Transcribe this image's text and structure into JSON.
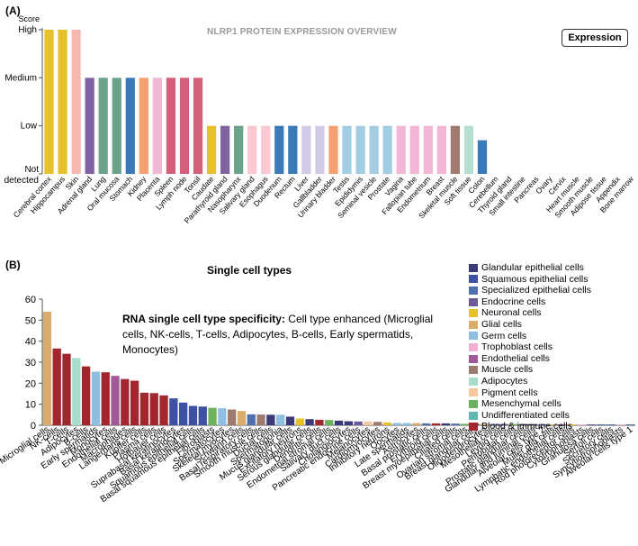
{
  "panel_a": {
    "label": "(A)",
    "title": "NLRP1 PROTEIN EXPRESSION OVERVIEW",
    "button_label": "Expression",
    "chart_data": {
      "type": "bar",
      "ylabel": "Score",
      "y_levels": [
        "Not detected",
        "Low",
        "Medium",
        "High"
      ],
      "ylim": [
        0,
        3
      ],
      "categories": [
        "Cerebral cortex",
        "Hippocampus",
        "Skin",
        "Adrenal gland",
        "Lung",
        "Oral mucosa",
        "Stomach",
        "Kidney",
        "Placenta",
        "Spleen",
        "Lymph node",
        "Tonsil",
        "Caudate",
        "Parathyroid gland",
        "Nasopharynx",
        "Salivary gland",
        "Esophagus",
        "Duodenum",
        "Rectum",
        "Liver",
        "Gallbladder",
        "Urinary bladder",
        "Testis",
        "Epididymis",
        "Seminal vesicle",
        "Prostate",
        "Vagina",
        "Fallopian tube",
        "Endometrium",
        "Breast",
        "Skeletal muscle",
        "Soft tissue",
        "Colon",
        "Cerebellum",
        "Thyroid gland",
        "Small intestine",
        "Pancreas",
        "Ovary",
        "Cervix",
        "Heart muscle",
        "Smooth muscle",
        "Adipose tissue",
        "Appendix",
        "Bone marrow"
      ],
      "values": [
        3,
        3,
        3,
        2,
        2,
        2,
        2,
        2,
        2,
        2,
        2,
        2,
        1,
        1,
        1,
        1,
        1,
        1,
        1,
        1,
        1,
        1,
        1,
        1,
        1,
        1,
        1,
        1,
        1,
        1,
        1,
        1,
        0.7,
        0,
        0,
        0,
        0,
        0,
        0,
        0,
        0,
        0,
        0,
        0
      ],
      "colors": [
        "#e8c12a",
        "#e8c12a",
        "#f6b8b0",
        "#7f63a3",
        "#6aa38a",
        "#6aa38a",
        "#3a7ab8",
        "#f4a070",
        "#f2b7d6",
        "#d45f7b",
        "#d45f7b",
        "#d45f7b",
        "#e8c12a",
        "#7f63a3",
        "#6aa38a",
        "#f9c8d0",
        "#f9c8d0",
        "#3a7ab8",
        "#3a7ab8",
        "#d2c9e6",
        "#d2c9e6",
        "#f4a070",
        "#a3cde3",
        "#a3cde3",
        "#a3cde3",
        "#a3cde3",
        "#f2b7d6",
        "#f2b7d6",
        "#f2b7d6",
        "#f2b7d6",
        "#a07a6c",
        "#b4e0d2",
        "#3a7ab8",
        "#3a7ab8",
        "#3a7ab8",
        "#3a7ab8",
        "#3a7ab8",
        "#3a7ab8",
        "#3a7ab8",
        "#3a7ab8",
        "#3a7ab8",
        "#3a7ab8",
        "#3a7ab8",
        "#3a7ab8"
      ]
    }
  },
  "panel_b": {
    "label": "(B)",
    "title": "Single cell types",
    "annotation_bold": "RNA single cell type specificity:",
    "annotation_text": " Cell type enhanced (Microglial cells, NK-cells, T-cells, Adipocytes, B-cells, Early spermatids, Monocytes)",
    "legend": [
      {
        "label": "Glandular epithelial cells",
        "color": "#3b3a78"
      },
      {
        "label": "Squamous epithelial cells",
        "color": "#3f51a3"
      },
      {
        "label": "Specialized epithelial cells",
        "color": "#4f6fae"
      },
      {
        "label": "Endocrine cells",
        "color": "#6b5a97"
      },
      {
        "label": "Neuronal cells",
        "color": "#e8c12a"
      },
      {
        "label": "Glial cells",
        "color": "#d9ac6a"
      },
      {
        "label": "Germ cells",
        "color": "#8fbfe0"
      },
      {
        "label": "Trophoblast cells",
        "color": "#f0b0d0"
      },
      {
        "label": "Endothelial cells",
        "color": "#a05a98"
      },
      {
        "label": "Muscle cells",
        "color": "#9c7a6e"
      },
      {
        "label": "Adipocytes",
        "color": "#a8dccc"
      },
      {
        "label": "Pigment cells",
        "color": "#f6c8a0"
      },
      {
        "label": "Mesenchymal cells",
        "color": "#6cb25c"
      },
      {
        "label": "Undifferentiated cells",
        "color": "#5cb8b0"
      },
      {
        "label": "Blood & immune cells",
        "color": "#a3262e"
      }
    ],
    "chart_data": {
      "type": "bar",
      "ylim": [
        0,
        60
      ],
      "yticks": [
        0,
        10,
        20,
        30,
        40,
        50,
        60
      ],
      "categories": [
        "Microglial cells",
        "NK-cells",
        "T-cells",
        "Adipocytes",
        "B-cells",
        "Early spermatids",
        "Monocytes",
        "Endothelial cells",
        "Macrophages",
        "Langerhans cells",
        "Kupffer cells",
        "Plasma cells",
        "Hofbauer cells",
        "Suprabasal keratinocytes",
        "Basal keratinocytes",
        "Squamous epithelial cells",
        "Basal squamous epithelial cells",
        "Fibroblasts",
        "Spermatocytes",
        "Skeletal myocytes",
        "Schwann cells",
        "Basal respiratory cells",
        "Smooth muscle cells",
        "Ductal cells",
        "Spermatogonia",
        "Mucus glandular cells",
        "Excitatory neurons",
        "Serous glandular cells",
        "Dendritic cells",
        "Endometrial stromal cells",
        "Salivary duct cells",
        "Cholangiocytes",
        "Pancreatic endocrine cells",
        "Melanocytes",
        "Cardiomyocytes",
        "Inhibitory neurons",
        "Oocytes",
        "Late spermatids",
        "Astrocytes",
        "Basal prostatic cells",
        "Erythroid cells",
        "Breast myoepithelial cells",
        "Ciliated cells",
        "Ovarian stromal cells",
        "Breast glandular cells",
        "Oligodendrocytes",
        "Mesothelial cells",
        "Leydig cells",
        "Peritubular cells",
        "Prostatic glandular cells",
        "Glandular and luminal cells",
        "Alveolar cells type 2",
        "Muller glia cells",
        "Lymphatic endothelial cells",
        "Rod photoreceptor cells",
        "Cytotrophoblasts",
        "Granulosa cells",
        "Sertoli cells",
        "Secretory cells",
        "Syncytiotrophoblasts",
        "Alveolar cells type 1"
      ],
      "values": [
        54,
        36.5,
        34,
        32,
        28,
        25.5,
        25.2,
        23.5,
        22,
        21.2,
        15.5,
        15.3,
        14.2,
        12.8,
        10.8,
        9.2,
        8.9,
        8.3,
        8.1,
        7.5,
        6.8,
        5.2,
        5.1,
        5,
        5,
        4.1,
        3.2,
        2.9,
        2.6,
        2.5,
        2.2,
        1.9,
        1.8,
        1.8,
        1.6,
        1.3,
        1.1,
        1.1,
        1,
        0.9,
        0.9,
        0.9,
        0.8,
        0.7,
        0.7,
        0.6,
        0.6,
        0.6,
        0.6,
        0.5,
        0.5,
        0.5,
        0.4,
        0.4,
        0.4,
        0.3,
        0.3,
        0.3,
        0.2,
        0.2,
        0.2
      ],
      "colors": [
        "#d9ac6a",
        "#a3262e",
        "#a3262e",
        "#a8dccc",
        "#a3262e",
        "#8fbfe0",
        "#a3262e",
        "#a05a98",
        "#a3262e",
        "#a3262e",
        "#a3262e",
        "#a3262e",
        "#a3262e",
        "#3f51a3",
        "#3f51a3",
        "#3f51a3",
        "#3f51a3",
        "#6cb25c",
        "#8fbfe0",
        "#9c7a6e",
        "#d9ac6a",
        "#4f6fae",
        "#9c7a6e",
        "#3b3a78",
        "#8fbfe0",
        "#3b3a78",
        "#e8c12a",
        "#3b3a78",
        "#a3262e",
        "#6cb25c",
        "#3b3a78",
        "#3b3a78",
        "#6b5a97",
        "#f6c8a0",
        "#9c7a6e",
        "#e8c12a",
        "#8fbfe0",
        "#8fbfe0",
        "#d9ac6a",
        "#4f6fae",
        "#a3262e",
        "#3b3a78",
        "#4f6fae",
        "#6cb25c",
        "#3b3a78",
        "#d9ac6a",
        "#4f6fae",
        "#6b5a97",
        "#6cb25c",
        "#3b3a78",
        "#3b3a78",
        "#4f6fae",
        "#d9ac6a",
        "#a05a98",
        "#e8c12a",
        "#f0b0d0",
        "#6b5a97",
        "#4f6fae",
        "#4f6fae",
        "#f0b0d0",
        "#4f6fae"
      ]
    }
  }
}
